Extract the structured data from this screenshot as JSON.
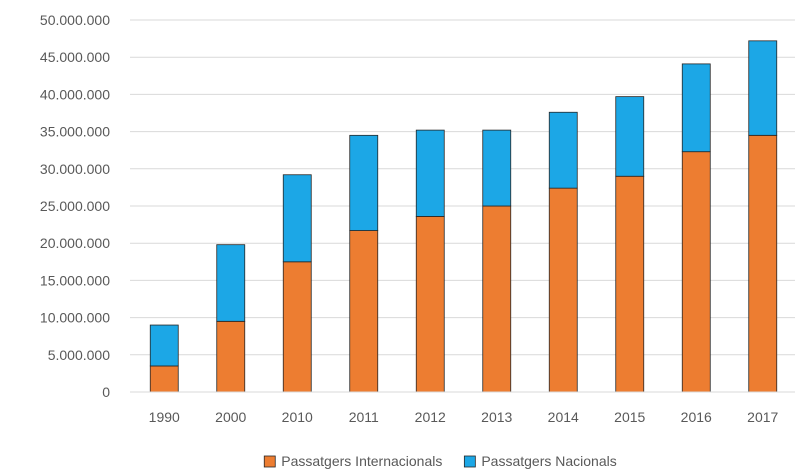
{
  "chart_data": {
    "type": "bar",
    "stacked": true,
    "title": "",
    "xlabel": "",
    "ylabel": "",
    "categories": [
      "1990",
      "2000",
      "2010",
      "2011",
      "2012",
      "2013",
      "2014",
      "2015",
      "2016",
      "2017"
    ],
    "series": [
      {
        "name": "Passatgers Internacionals",
        "color": "#ED7D31",
        "values": [
          3500000,
          9500000,
          17500000,
          21700000,
          23600000,
          25000000,
          27400000,
          29000000,
          32300000,
          34500000
        ]
      },
      {
        "name": "Passatgers Nacionals",
        "color": "#1CA7E6",
        "values": [
          5500000,
          10300000,
          11700000,
          12800000,
          11600000,
          10200000,
          10200000,
          10700000,
          11800000,
          12700000
        ]
      }
    ],
    "ylim": [
      0,
      50000000
    ],
    "yticks": [
      0,
      5000000,
      10000000,
      15000000,
      20000000,
      25000000,
      30000000,
      35000000,
      40000000,
      45000000,
      50000000
    ],
    "ytick_labels": [
      "0",
      "5.000.000",
      "10.000.000",
      "15.000.000",
      "20.000.000",
      "25.000.000",
      "30.000.000",
      "35.000.000",
      "40.000.000",
      "45.000.000",
      "50.000.000"
    ],
    "grid": true,
    "gridline_color": "#D9D9D9",
    "legend_position": "bottom-center"
  }
}
